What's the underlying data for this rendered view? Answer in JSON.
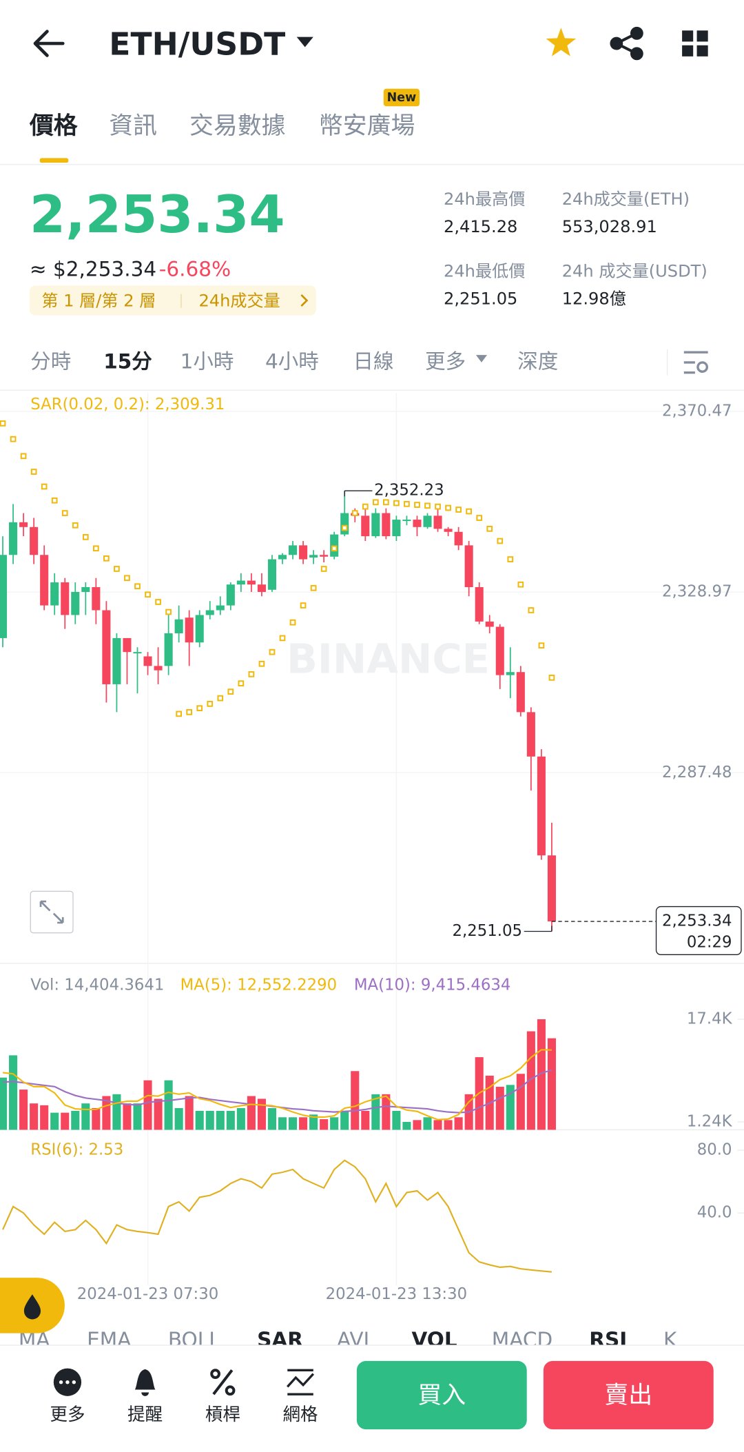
{
  "header": {
    "pair": "ETH/USDT"
  },
  "tabs": {
    "items": [
      "價格",
      "資訊",
      "交易數據",
      "幣安廣場"
    ],
    "badge": "New"
  },
  "ticker": {
    "price": "2,253.34",
    "usd": "≈ $2,253.34",
    "change": "-6.68%",
    "layer_tag": "第 1 層/第 2 層",
    "volume_tag": "24h成交量",
    "stats": [
      {
        "label": "24h最高價",
        "value": "2,415.28"
      },
      {
        "label": "24h成交量(ETH)",
        "value": "553,028.91"
      },
      {
        "label": "24h最低價",
        "value": "2,251.05"
      },
      {
        "label": "24h 成交量(USDT)",
        "value": "12.98億"
      }
    ]
  },
  "intervals": [
    "分時",
    "15分",
    "1小時",
    "4小時",
    "日線",
    "更多",
    "深度"
  ],
  "price_chart": {
    "type": "candlestick",
    "sar_label": "SAR(0.02, 0.2): 2,309.31",
    "watermark": "BINANCE",
    "up_color": "#2ebd85",
    "down_color": "#f6465d",
    "sar_color": "#f0b90b",
    "candles": [
      [
        2318.4,
        2341.8,
        2316.3,
        2337.5
      ],
      [
        2337.5,
        2349.2,
        2335.4,
        2345.0
      ],
      [
        2345.0,
        2347.1,
        2341.8,
        2343.9
      ],
      [
        2343.9,
        2346.0,
        2335.4,
        2337.5
      ],
      [
        2337.5,
        2339.7,
        2324.8,
        2325.9
      ],
      [
        2325.9,
        2333.3,
        2323.7,
        2331.2
      ],
      [
        2331.2,
        2332.2,
        2320.5,
        2323.7
      ],
      [
        2323.7,
        2331.2,
        2321.6,
        2329.0
      ],
      [
        2329.0,
        2331.2,
        2323.7,
        2330.1
      ],
      [
        2330.1,
        2332.2,
        2321.6,
        2324.8
      ],
      [
        2324.8,
        2326.9,
        2303.6,
        2307.8
      ],
      [
        2307.8,
        2319.5,
        2301.4,
        2318.4
      ],
      [
        2318.4,
        2318.4,
        2307.8,
        2315.2
      ],
      [
        2315.2,
        2316.3,
        2305.7,
        2315.2
      ],
      [
        2314.2,
        2315.2,
        2309.9,
        2312.0
      ],
      [
        2312.0,
        2316.3,
        2307.8,
        2311.0
      ],
      [
        2312.0,
        2323.7,
        2309.9,
        2319.5
      ],
      [
        2319.5,
        2325.9,
        2317.4,
        2322.7
      ],
      [
        2323.1,
        2324.8,
        2312.0,
        2317.4
      ],
      [
        2317.4,
        2324.8,
        2316.3,
        2323.7
      ],
      [
        2323.7,
        2326.9,
        2322.7,
        2324.8
      ],
      [
        2324.8,
        2328.0,
        2323.7,
        2325.9
      ],
      [
        2325.9,
        2331.2,
        2324.8,
        2330.7
      ],
      [
        2330.7,
        2333.3,
        2329.0,
        2331.6
      ],
      [
        2331.6,
        2333.3,
        2329.0,
        2330.7
      ],
      [
        2330.7,
        2333.3,
        2328.0,
        2329.0
      ],
      [
        2329.5,
        2337.5,
        2329.0,
        2336.5
      ],
      [
        2336.5,
        2337.9,
        2335.4,
        2337.5
      ],
      [
        2337.5,
        2340.7,
        2336.5,
        2339.7
      ],
      [
        2339.7,
        2340.7,
        2335.4,
        2336.5
      ],
      [
        2336.9,
        2338.6,
        2335.4,
        2337.5
      ],
      [
        2337.5,
        2338.6,
        2335.8,
        2337.1
      ],
      [
        2337.1,
        2342.8,
        2336.5,
        2342.2
      ],
      [
        2342.2,
        2352.23,
        2341.8,
        2347.1
      ],
      [
        2347.1,
        2348.2,
        2345.0,
        2346.5
      ],
      [
        2346.5,
        2348.2,
        2340.7,
        2341.8
      ],
      [
        2341.8,
        2348.2,
        2341.4,
        2347.1
      ],
      [
        2347.1,
        2348.2,
        2341.1,
        2341.8
      ],
      [
        2341.8,
        2346.5,
        2340.7,
        2345.6
      ],
      [
        2345.4,
        2346.5,
        2344.3,
        2345.6
      ],
      [
        2345.6,
        2346.5,
        2341.8,
        2343.9
      ],
      [
        2343.9,
        2347.1,
        2343.5,
        2346.5
      ],
      [
        2346.5,
        2348.2,
        2342.8,
        2343.5
      ],
      [
        2343.5,
        2343.9,
        2341.8,
        2342.8
      ],
      [
        2342.8,
        2343.9,
        2338.6,
        2339.7
      ],
      [
        2339.7,
        2340.7,
        2328.0,
        2330.1
      ],
      [
        2330.1,
        2331.2,
        2321.6,
        2322.2
      ],
      [
        2322.2,
        2323.7,
        2319.5,
        2321.0
      ],
      [
        2321.0,
        2321.6,
        2306.7,
        2309.9
      ],
      [
        2309.9,
        2316.3,
        2304.6,
        2310.6
      ],
      [
        2310.6,
        2312.0,
        2300.4,
        2301.4
      ],
      [
        2301.4,
        2302.5,
        2283.4,
        2291.2
      ],
      [
        2291.2,
        2292.9,
        2267.5,
        2268.5
      ],
      [
        2268.5,
        2276.0,
        2251.05,
        2253.34
      ]
    ],
    "sar": [
      2367.7,
      2364.1,
      2360.2,
      2356.6,
      2353.2,
      2350.0,
      2347.1,
      2344.3,
      2341.6,
      2339.0,
      2336.7,
      2334.3,
      2332.2,
      2330.3,
      2328.4,
      2326.7,
      2324.4,
      2301.0,
      2301.4,
      2302.3,
      2303.3,
      2304.6,
      2306.1,
      2308.0,
      2310.1,
      2312.5,
      2315.2,
      2318.4,
      2322.0,
      2325.9,
      2329.9,
      2334.3,
      2339.0,
      2343.7,
      2347.1,
      2348.6,
      2349.6,
      2349.6,
      2349.4,
      2349.2,
      2349.0,
      2348.8,
      2348.6,
      2348.3,
      2347.9,
      2347.5,
      2346.0,
      2343.5,
      2340.7,
      2336.5,
      2330.7,
      2324.8,
      2316.7,
      2309.31
    ],
    "times": [
      null,
      null,
      null,
      null,
      null,
      null,
      null,
      null,
      null,
      null,
      null,
      null,
      null,
      null,
      "2024-01-23 07:30",
      null,
      null,
      null,
      null,
      null,
      null,
      null,
      null,
      null,
      null,
      null,
      null,
      null,
      null,
      null,
      null,
      null,
      null,
      null,
      null,
      null,
      null,
      null,
      "2024-01-23 13:30",
      null,
      null,
      null,
      null,
      null,
      null,
      null,
      null,
      null,
      null,
      null,
      null,
      null,
      null,
      null
    ],
    "high_label": "2,352.23",
    "low_label": "2,251.05",
    "last_label": "2,253.34",
    "last_time": "02:29",
    "ylim": [
      2243.7,
      2374.7
    ],
    "yticks": [
      {
        "value": 2370.47,
        "label": "2,370.47"
      },
      {
        "value": 2328.97,
        "label": "2,328.97"
      },
      {
        "value": 2287.48,
        "label": "2,287.48"
      }
    ],
    "grid": true
  },
  "volume_chart": {
    "type": "bar",
    "legend": [
      "Vol: 14,404.3641",
      "MA(5): 12,552.2290",
      "MA(10): 9,415.4634"
    ],
    "ma5_color": "#f0b90b",
    "ma10_color": "#9c6fc4",
    "values": [
      8220,
      11720,
      6330,
      4150,
      3860,
      2690,
      2690,
      2980,
      4150,
      3420,
      5310,
      5600,
      4150,
      4150,
      7790,
      4880,
      7790,
      3420,
      5310,
      2980,
      2980,
      2980,
      2980,
      3420,
      5310,
      4880,
      3420,
      1970,
      1970,
      1970,
      2400,
      1670,
      1970,
      2980,
      9240,
      2980,
      5600,
      5600,
      2980,
      1240,
      1530,
      1970,
      1530,
      1530,
      1970,
      5600,
      11430,
      8520,
      6770,
      7060,
      8810,
      15500,
      17400,
      14404.3641
    ],
    "ma5": [
      9000,
      8800,
      7500,
      6800,
      6800,
      5800,
      3900,
      3300,
      3200,
      3200,
      3800,
      4200,
      4500,
      4500,
      5400,
      5300,
      5900,
      5600,
      5800,
      4900,
      4600,
      4000,
      3500,
      3800,
      4000,
      3900,
      3800,
      3400,
      2800,
      2300,
      2000,
      2000,
      2200,
      3400,
      3700,
      4400,
      4900,
      5300,
      3700,
      3100,
      2900,
      2200,
      1600,
      1700,
      2400,
      4400,
      5800,
      6700,
      7900,
      8500,
      9700,
      11400,
      12600,
      12552.229
    ],
    "ma10": [
      7500,
      7600,
      7400,
      7200,
      7000,
      6800,
      6000,
      5400,
      5000,
      4800,
      4600,
      4200,
      4000,
      3900,
      4300,
      4500,
      4600,
      4800,
      5000,
      5100,
      4800,
      4600,
      4400,
      4200,
      4000,
      3900,
      3700,
      3500,
      3300,
      3200,
      3000,
      2900,
      2800,
      2900,
      3000,
      3200,
      3500,
      3700,
      3600,
      3500,
      3400,
      3300,
      3000,
      2800,
      2700,
      2800,
      3500,
      4200,
      5000,
      5700,
      6700,
      8000,
      8900,
      9415.4634
    ],
    "ylim": [
      0,
      18000
    ],
    "yticks": [
      {
        "value": 17400,
        "label": "17.4K"
      },
      {
        "value": 1240,
        "label": "1.24K"
      }
    ]
  },
  "rsi_chart": {
    "type": "line",
    "label": "RSI(6): 2.53",
    "color": "#e0b020",
    "values": [
      29.4,
      44.1,
      40.0,
      32.4,
      26.5,
      34.1,
      28.3,
      29.4,
      35.3,
      29.4,
      20.6,
      32.4,
      29.4,
      28.3,
      27.5,
      26.5,
      44.1,
      47.1,
      41.2,
      50.0,
      51.2,
      54.1,
      58.8,
      61.8,
      60.0,
      55.9,
      64.7,
      65.9,
      67.7,
      61.8,
      58.8,
      55.9,
      67.7,
      73.5,
      69.4,
      61.8,
      47.1,
      58.8,
      44.1,
      53.0,
      54.1,
      48.2,
      53.0,
      44.1,
      29.4,
      14.7,
      8.9,
      7.0,
      5.5,
      6.0,
      4.5,
      3.8,
      3.1,
      2.53
    ],
    "ylim": [
      0,
      90
    ],
    "yticks": [
      {
        "value": 80,
        "label": "80.0"
      },
      {
        "value": 40,
        "label": "40.0"
      }
    ]
  },
  "indicators": {
    "items": [
      "MA",
      "EMA",
      "BOLL",
      "SAR",
      "AVL",
      "VOL",
      "MACD",
      "RSI",
      "K"
    ],
    "active": [
      "SAR",
      "VOL",
      "RSI"
    ]
  },
  "bottom_bar": {
    "tools": [
      "更多",
      "提醒",
      "槓桿",
      "網格"
    ],
    "buy": "買入",
    "sell": "賣出"
  }
}
